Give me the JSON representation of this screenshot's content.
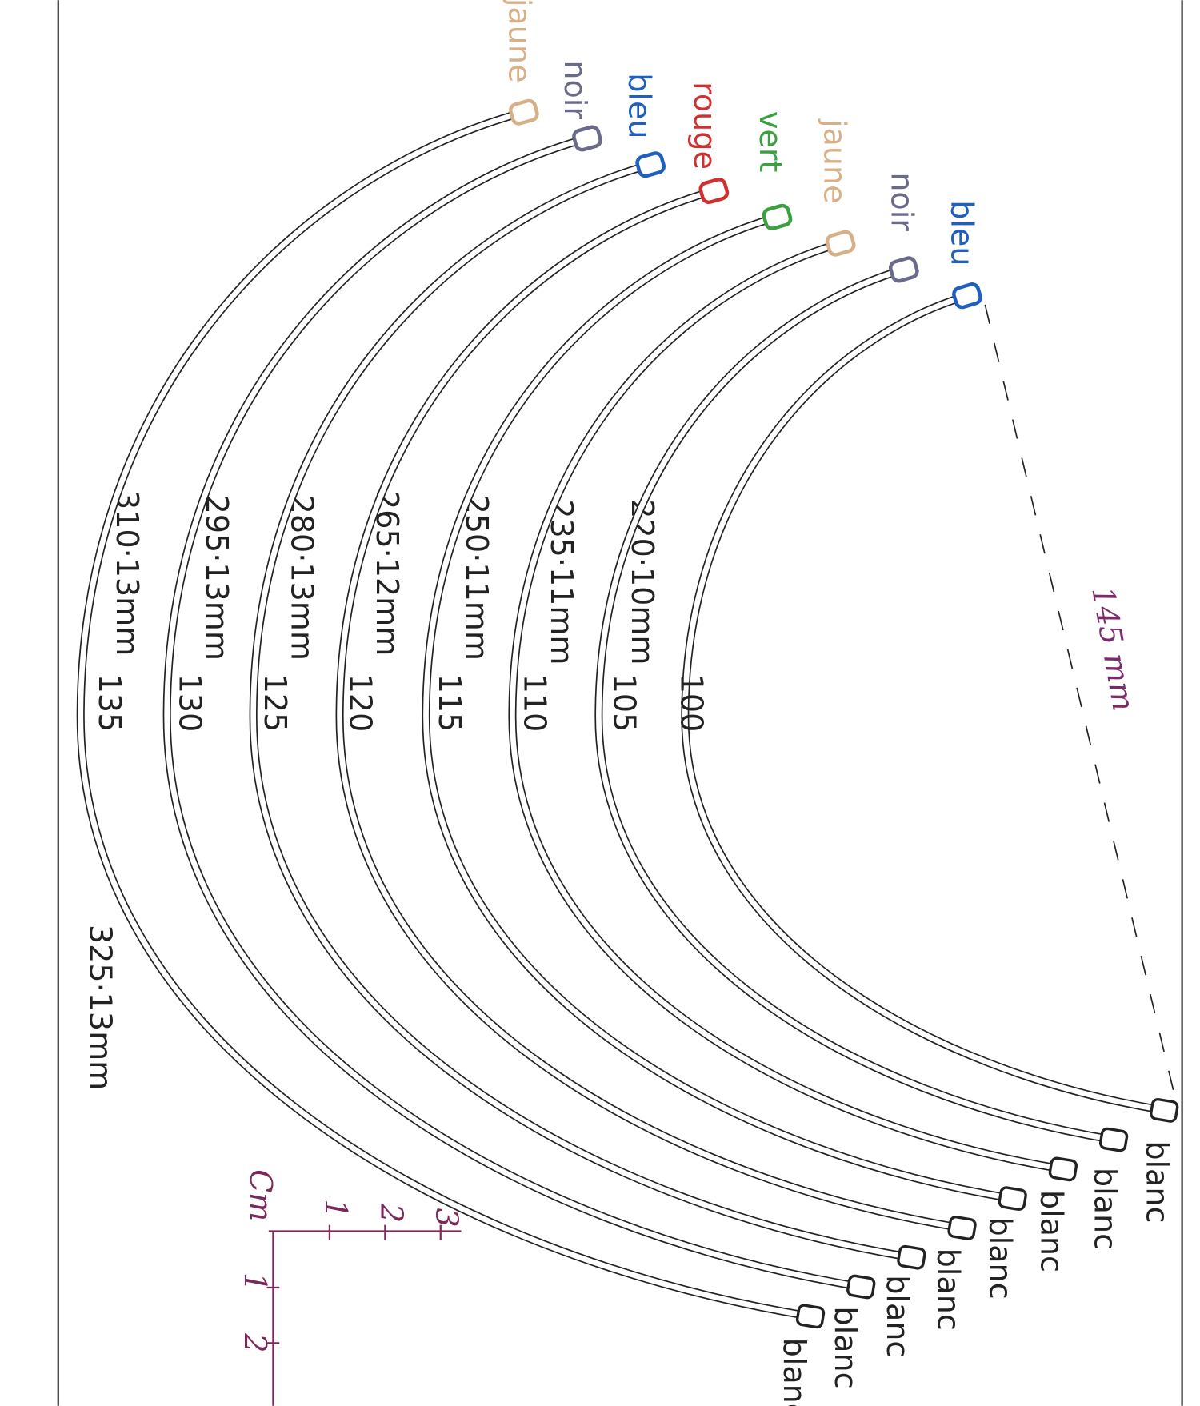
{
  "wires": [
    {
      "tip_label": "bleu",
      "color": "#1f5fbf",
      "radius": 100,
      "length": "220·10mm",
      "end_label": "blanc"
    },
    {
      "tip_label": "noir",
      "color": "#6a6a8a",
      "radius": 105,
      "length": "235·11mm",
      "end_label": "blanc"
    },
    {
      "tip_label": "jaune",
      "color": "#d8b088",
      "radius": 110,
      "length": "250·11mm",
      "end_label": "blanc"
    },
    {
      "tip_label": "vert",
      "color": "#3aa040",
      "radius": 115,
      "length": "265·12mm",
      "end_label": "blanc"
    },
    {
      "tip_label": "rouge",
      "color": "#d03030",
      "radius": 120,
      "length": "280·13mm",
      "end_label": "blanc"
    },
    {
      "tip_label": "bleu",
      "color": "#1f5fbf",
      "radius": 125,
      "length": "295·13mm",
      "end_label": "blanc"
    },
    {
      "tip_label": "noir",
      "color": "#6a6a8a",
      "radius": 130,
      "length": "310·13mm",
      "end_label": "blanc"
    },
    {
      "tip_label": "jaune",
      "color": "#d8b088",
      "radius": 135,
      "length": "325·13mm",
      "end_label": "blanc"
    }
  ],
  "annotation": "145 mm",
  "scale": {
    "unit": "Cm",
    "x_ticks": [
      "1",
      "2",
      "3"
    ],
    "y_ticks": [
      "1",
      "2"
    ]
  }
}
